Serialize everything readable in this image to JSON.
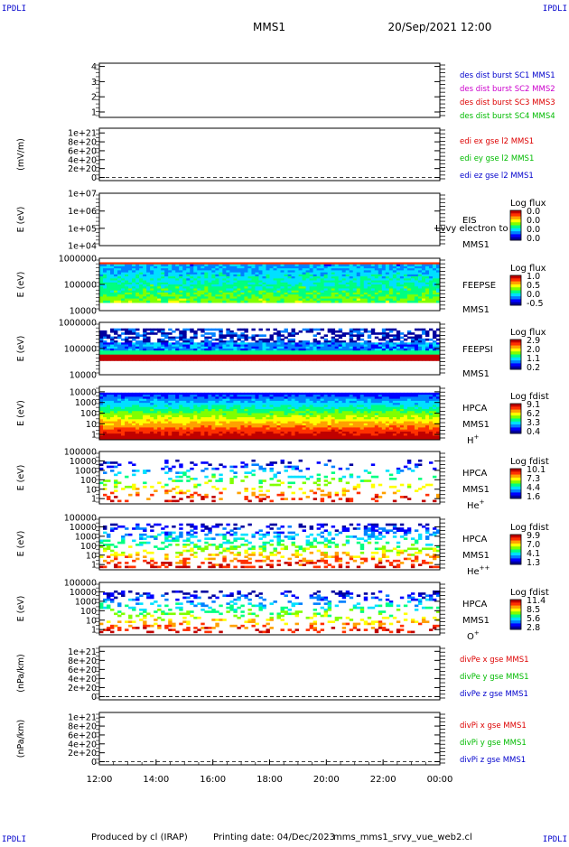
{
  "corner_label": "IPDLI",
  "header": {
    "spacecraft": "MMS1",
    "datetime": "20/Sep/2021 12:00"
  },
  "footer": {
    "produced_by": "Produced by cl (IRAP)",
    "printing_date": "Printing date: 04/Dec/2023",
    "script_name": "mms_mms1_srvy_vue_web2.cl"
  },
  "chart_data": {
    "type": "heatmap",
    "x": {
      "ticks": [
        "12:00",
        "14:00",
        "16:00",
        "18:00",
        "20:00",
        "22:00",
        "00:00"
      ],
      "range_hours": [
        12,
        24
      ]
    },
    "palette": [
      "#0000a0",
      "#0000ff",
      "#0080ff",
      "#00e0ff",
      "#00ff80",
      "#80ff00",
      "#ffff00",
      "#ffa000",
      "#ff3000",
      "#c00000"
    ],
    "panels": [
      {
        "id": "distburst",
        "kind": "line",
        "ylabel": "",
        "ticks": [
          "4",
          "3",
          "2",
          "1"
        ],
        "ytick_fracs": [
          0.06,
          0.34,
          0.62,
          0.9
        ],
        "right_labels": [
          {
            "text": "des dist burst SC1 MMS1",
            "color": "#0000cc"
          },
          {
            "text": "des dist burst SC2 MMS2",
            "color": "#cc00cc"
          },
          {
            "text": "des dist burst SC3 MMS3",
            "color": "#dd0000"
          },
          {
            "text": "des dist burst SC4 MMS4",
            "color": "#00bb00"
          }
        ]
      },
      {
        "id": "edi",
        "kind": "line",
        "ylabel": "(mV/m)",
        "ticks": [
          "1e+21",
          "8e+20",
          "6e+20",
          "4e+20",
          "2e+20",
          "0"
        ],
        "ytick_fracs": [
          0.09,
          0.26,
          0.43,
          0.6,
          0.77,
          0.94
        ],
        "dashed_zero": true,
        "right_labels": [
          {
            "text": "edi ex gse l2 MMS1",
            "color": "#dd0000"
          },
          {
            "text": "edi ey gse l2 MMS1",
            "color": "#00bb00"
          },
          {
            "text": "edi ez gse l2 MMS1",
            "color": "#0000cc"
          }
        ]
      },
      {
        "id": "eis",
        "kind": "spectro",
        "ylabel": "E (eV)",
        "ticks": [
          "1e+07",
          "1e+06",
          "1e+05",
          "1e+04"
        ],
        "ytick_fracs": [
          0.0,
          0.34,
          0.67,
          1.0
        ],
        "instrument": [
          "EIS",
          "MMS1"
        ],
        "overlay_text": "Lvvy electron to",
        "colorbar": {
          "title": "Log flux",
          "values": [
            "0.0",
            "0.0",
            "0.0",
            "0.0"
          ]
        },
        "fill": "none"
      },
      {
        "id": "feepse",
        "kind": "spectro",
        "ylabel": "E (eV)",
        "ticks": [
          "1000000",
          "100000",
          "10000"
        ],
        "ytick_fracs": [
          0.0,
          0.5,
          1.0
        ],
        "instrument": [
          "FEEPSE",
          "MMS1"
        ],
        "colorbar": {
          "title": "Log flux",
          "values": [
            "1.0",
            "0.5",
            "0.0",
            "-0.5"
          ]
        },
        "fill": "feepse"
      },
      {
        "id": "feepsi",
        "kind": "spectro",
        "ylabel": "E (eV)",
        "ticks": [
          "1000000",
          "100000",
          "10000"
        ],
        "ytick_fracs": [
          0.0,
          0.5,
          1.0
        ],
        "instrument": [
          "FEEPSI",
          "MMS1"
        ],
        "colorbar": {
          "title": "Log flux",
          "values": [
            "2.9",
            "2.0",
            "1.1",
            "0.2"
          ]
        },
        "fill": "feepsi"
      },
      {
        "id": "hpca_h",
        "kind": "spectro",
        "ylabel": "E (eV)",
        "ticks": [
          "10000",
          "1000",
          "100",
          "10",
          "1"
        ],
        "ytick_fracs": [
          0.1,
          0.3,
          0.5,
          0.7,
          0.9
        ],
        "instrument": [
          "HPCA",
          "MMS1"
        ],
        "species": "H",
        "species_sup": "+",
        "colorbar": {
          "title": "Log fdist",
          "values": [
            "9.1",
            "6.2",
            "3.3",
            "0.4"
          ]
        },
        "fill": "hpca_h"
      },
      {
        "id": "hpca_he1",
        "kind": "spectro",
        "ylabel": "E (eV)",
        "ticks": [
          "100000",
          "10000",
          "1000",
          "100",
          "10",
          "1"
        ],
        "ytick_fracs": [
          0.0,
          0.18,
          0.36,
          0.54,
          0.72,
          0.9
        ],
        "instrument": [
          "HPCA",
          "MMS1"
        ],
        "species": "He",
        "species_sup": "+",
        "colorbar": {
          "title": "Log fdist",
          "values": [
            "10.1",
            "7.3",
            "4.4",
            "1.6"
          ]
        },
        "fill": "sparse_he1"
      },
      {
        "id": "hpca_he2",
        "kind": "spectro",
        "ylabel": "E (eV)",
        "ticks": [
          "100000",
          "10000",
          "1000",
          "100",
          "10",
          "1"
        ],
        "ytick_fracs": [
          0.0,
          0.18,
          0.36,
          0.54,
          0.72,
          0.9
        ],
        "instrument": [
          "HPCA",
          "MMS1"
        ],
        "species": "He",
        "species_sup": "++",
        "colorbar": {
          "title": "Log fdist",
          "values": [
            "9.9",
            "7.0",
            "4.1",
            "1.3"
          ]
        },
        "fill": "sparse_he2"
      },
      {
        "id": "hpca_o",
        "kind": "spectro",
        "ylabel": "E (eV)",
        "ticks": [
          "100000",
          "10000",
          "1000",
          "100",
          "10",
          "1"
        ],
        "ytick_fracs": [
          0.0,
          0.18,
          0.36,
          0.54,
          0.72,
          0.9
        ],
        "instrument": [
          "HPCA",
          "MMS1"
        ],
        "species": "O",
        "species_sup": "+",
        "colorbar": {
          "title": "Log fdist",
          "values": [
            "11.4",
            "8.5",
            "5.6",
            "2.8"
          ]
        },
        "fill": "sparse_o"
      },
      {
        "id": "divpe",
        "kind": "line",
        "ylabel": "(nPa/km)",
        "ticks": [
          "1e+21",
          "8e+20",
          "6e+20",
          "4e+20",
          "2e+20",
          "0"
        ],
        "ytick_fracs": [
          0.09,
          0.26,
          0.43,
          0.6,
          0.77,
          0.94
        ],
        "dashed_zero": true,
        "right_labels": [
          {
            "text": "divPe x gse MMS1",
            "color": "#dd0000"
          },
          {
            "text": "divPe y gse MMS1",
            "color": "#00bb00"
          },
          {
            "text": "divPe z gse MMS1",
            "color": "#0000cc"
          }
        ]
      },
      {
        "id": "divpi",
        "kind": "line",
        "ylabel": "(nPa/km)",
        "ticks": [
          "1e+21",
          "8e+20",
          "6e+20",
          "4e+20",
          "2e+20",
          "0"
        ],
        "ytick_fracs": [
          0.09,
          0.26,
          0.43,
          0.6,
          0.77,
          0.94
        ],
        "dashed_zero": true,
        "right_labels": [
          {
            "text": "divPi x gse MMS1",
            "color": "#dd0000"
          },
          {
            "text": "divPi y gse MMS1",
            "color": "#00bb00"
          },
          {
            "text": "divPi z gse MMS1",
            "color": "#0000cc"
          }
        ]
      }
    ]
  }
}
